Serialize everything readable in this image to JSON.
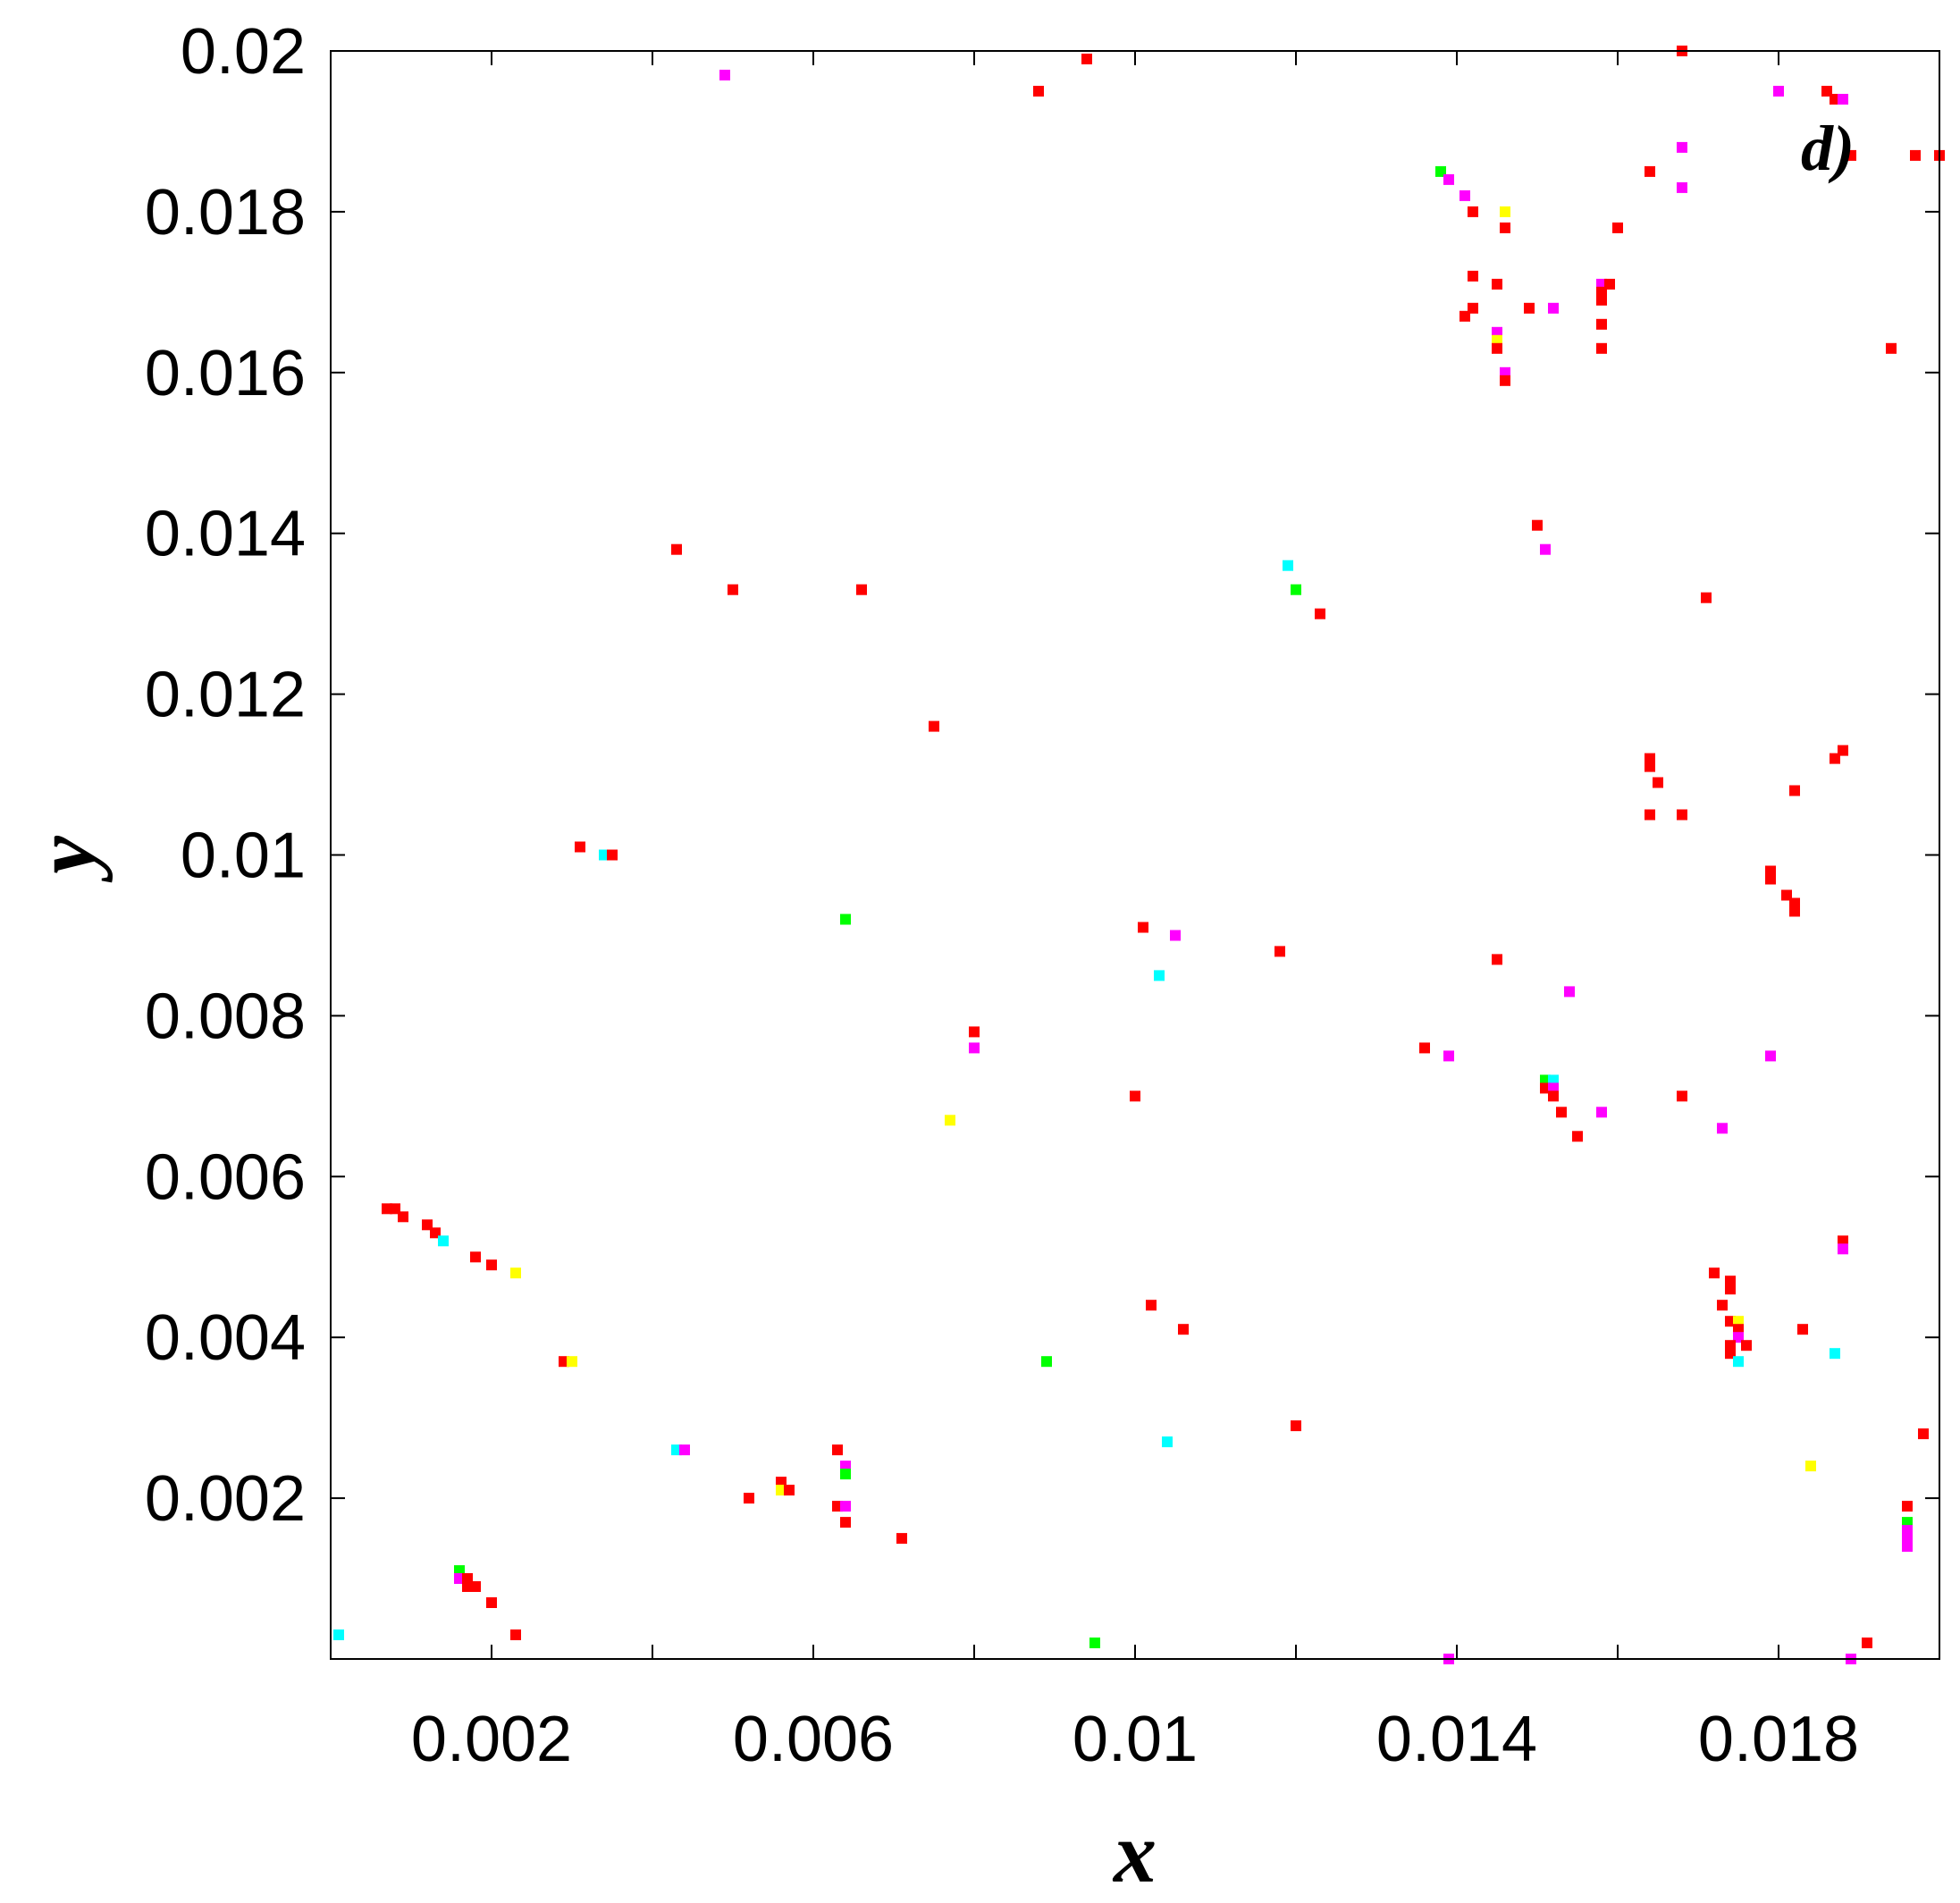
{
  "chart_data": {
    "type": "scatter",
    "panel_label": "d)",
    "xlabel": "x",
    "ylabel": "y",
    "xlim": [
      0,
      0.02
    ],
    "ylim": [
      0,
      0.02
    ],
    "grid": false,
    "x_tick_values": [
      0.002,
      0.006,
      0.01,
      0.014,
      0.018
    ],
    "x_tick_labels": [
      "0.002",
      "0.006",
      "0.01",
      "0.014",
      "0.018"
    ],
    "x_minor_ticks": [
      0.002,
      0.004,
      0.006,
      0.008,
      0.01,
      0.012,
      0.014,
      0.016,
      0.018
    ],
    "y_tick_values": [
      0.002,
      0.004,
      0.006,
      0.008,
      0.01,
      0.012,
      0.014,
      0.016,
      0.018,
      0.02
    ],
    "y_tick_labels": [
      "0.002",
      "0.004",
      "0.006",
      "0.008",
      "0.01",
      "0.012",
      "0.014",
      "0.016",
      "0.018",
      "0.02"
    ],
    "colors": {
      "red": "#ff0000",
      "magenta": "#ff00ff",
      "cyan": "#00ffff",
      "yellow": "#ffff00",
      "green": "#00ff00"
    },
    "points": [
      {
        "x": 0.0049,
        "y": 0.0197,
        "c": "magenta"
      },
      {
        "x": 0.0088,
        "y": 0.0195,
        "c": "red"
      },
      {
        "x": 0.0094,
        "y": 0.0199,
        "c": "red"
      },
      {
        "x": 0.0168,
        "y": 0.02,
        "c": "red"
      },
      {
        "x": 0.018,
        "y": 0.0195,
        "c": "magenta"
      },
      {
        "x": 0.0186,
        "y": 0.0195,
        "c": "red"
      },
      {
        "x": 0.0187,
        "y": 0.0194,
        "c": "red"
      },
      {
        "x": 0.0188,
        "y": 0.0194,
        "c": "magenta"
      },
      {
        "x": 0.0189,
        "y": 0.0187,
        "c": "red"
      },
      {
        "x": 0.0197,
        "y": 0.0187,
        "c": "red"
      },
      {
        "x": 0.02,
        "y": 0.0187,
        "c": "red"
      },
      {
        "x": 0.0168,
        "y": 0.0188,
        "c": "magenta"
      },
      {
        "x": 0.0168,
        "y": 0.0183,
        "c": "magenta"
      },
      {
        "x": 0.0164,
        "y": 0.0185,
        "c": "red"
      },
      {
        "x": 0.016,
        "y": 0.0178,
        "c": "red"
      },
      {
        "x": 0.0138,
        "y": 0.0185,
        "c": "green"
      },
      {
        "x": 0.0139,
        "y": 0.0184,
        "c": "magenta"
      },
      {
        "x": 0.0141,
        "y": 0.0182,
        "c": "magenta"
      },
      {
        "x": 0.0142,
        "y": 0.018,
        "c": "red"
      },
      {
        "x": 0.0146,
        "y": 0.018,
        "c": "yellow"
      },
      {
        "x": 0.0146,
        "y": 0.0178,
        "c": "red"
      },
      {
        "x": 0.0142,
        "y": 0.0172,
        "c": "red"
      },
      {
        "x": 0.0145,
        "y": 0.0171,
        "c": "red"
      },
      {
        "x": 0.0142,
        "y": 0.0168,
        "c": "red"
      },
      {
        "x": 0.0141,
        "y": 0.0167,
        "c": "red"
      },
      {
        "x": 0.0149,
        "y": 0.0168,
        "c": "red"
      },
      {
        "x": 0.0152,
        "y": 0.0168,
        "c": "magenta"
      },
      {
        "x": 0.0145,
        "y": 0.0165,
        "c": "magenta"
      },
      {
        "x": 0.0145,
        "y": 0.0164,
        "c": "yellow"
      },
      {
        "x": 0.0145,
        "y": 0.0163,
        "c": "red"
      },
      {
        "x": 0.0146,
        "y": 0.016,
        "c": "magenta"
      },
      {
        "x": 0.0146,
        "y": 0.0159,
        "c": "red"
      },
      {
        "x": 0.0158,
        "y": 0.0171,
        "c": "magenta"
      },
      {
        "x": 0.0159,
        "y": 0.0171,
        "c": "red"
      },
      {
        "x": 0.0158,
        "y": 0.017,
        "c": "red"
      },
      {
        "x": 0.0158,
        "y": 0.0169,
        "c": "red"
      },
      {
        "x": 0.0158,
        "y": 0.0166,
        "c": "red"
      },
      {
        "x": 0.0158,
        "y": 0.0163,
        "c": "red"
      },
      {
        "x": 0.0194,
        "y": 0.0163,
        "c": "red"
      },
      {
        "x": 0.015,
        "y": 0.0141,
        "c": "red"
      },
      {
        "x": 0.0151,
        "y": 0.0138,
        "c": "magenta"
      },
      {
        "x": 0.0171,
        "y": 0.0132,
        "c": "red"
      },
      {
        "x": 0.0119,
        "y": 0.0136,
        "c": "cyan"
      },
      {
        "x": 0.012,
        "y": 0.0133,
        "c": "green"
      },
      {
        "x": 0.0123,
        "y": 0.013,
        "c": "red"
      },
      {
        "x": 0.0043,
        "y": 0.0138,
        "c": "red"
      },
      {
        "x": 0.005,
        "y": 0.0133,
        "c": "red"
      },
      {
        "x": 0.0066,
        "y": 0.0133,
        "c": "red"
      },
      {
        "x": 0.0075,
        "y": 0.0116,
        "c": "red"
      },
      {
        "x": 0.0164,
        "y": 0.0112,
        "c": "red"
      },
      {
        "x": 0.0164,
        "y": 0.0111,
        "c": "red"
      },
      {
        "x": 0.0165,
        "y": 0.0109,
        "c": "red"
      },
      {
        "x": 0.0164,
        "y": 0.0105,
        "c": "red"
      },
      {
        "x": 0.0168,
        "y": 0.0105,
        "c": "red"
      },
      {
        "x": 0.0187,
        "y": 0.0112,
        "c": "red"
      },
      {
        "x": 0.0188,
        "y": 0.0113,
        "c": "red"
      },
      {
        "x": 0.0182,
        "y": 0.0108,
        "c": "red"
      },
      {
        "x": 0.0031,
        "y": 0.0101,
        "c": "red"
      },
      {
        "x": 0.0034,
        "y": 0.01,
        "c": "cyan"
      },
      {
        "x": 0.0035,
        "y": 0.01,
        "c": "red"
      },
      {
        "x": 0.0064,
        "y": 0.0092,
        "c": "green"
      },
      {
        "x": 0.0101,
        "y": 0.0091,
        "c": "red"
      },
      {
        "x": 0.0105,
        "y": 0.009,
        "c": "magenta"
      },
      {
        "x": 0.0118,
        "y": 0.0088,
        "c": "red"
      },
      {
        "x": 0.0145,
        "y": 0.0087,
        "c": "red"
      },
      {
        "x": 0.0103,
        "y": 0.0085,
        "c": "cyan"
      },
      {
        "x": 0.0179,
        "y": 0.0098,
        "c": "red"
      },
      {
        "x": 0.0179,
        "y": 0.0097,
        "c": "red"
      },
      {
        "x": 0.0181,
        "y": 0.0095,
        "c": "red"
      },
      {
        "x": 0.0182,
        "y": 0.0094,
        "c": "red"
      },
      {
        "x": 0.0182,
        "y": 0.0093,
        "c": "red"
      },
      {
        "x": 0.0154,
        "y": 0.0083,
        "c": "magenta"
      },
      {
        "x": 0.008,
        "y": 0.0078,
        "c": "red"
      },
      {
        "x": 0.008,
        "y": 0.0076,
        "c": "magenta"
      },
      {
        "x": 0.0136,
        "y": 0.0076,
        "c": "red"
      },
      {
        "x": 0.0139,
        "y": 0.0075,
        "c": "magenta"
      },
      {
        "x": 0.0179,
        "y": 0.0075,
        "c": "magenta"
      },
      {
        "x": 0.0151,
        "y": 0.0072,
        "c": "green"
      },
      {
        "x": 0.0152,
        "y": 0.0072,
        "c": "cyan"
      },
      {
        "x": 0.0151,
        "y": 0.0071,
        "c": "red"
      },
      {
        "x": 0.0152,
        "y": 0.0071,
        "c": "magenta"
      },
      {
        "x": 0.0152,
        "y": 0.007,
        "c": "red"
      },
      {
        "x": 0.01,
        "y": 0.007,
        "c": "red"
      },
      {
        "x": 0.0168,
        "y": 0.007,
        "c": "red"
      },
      {
        "x": 0.0153,
        "y": 0.0068,
        "c": "red"
      },
      {
        "x": 0.0158,
        "y": 0.0068,
        "c": "magenta"
      },
      {
        "x": 0.0077,
        "y": 0.0067,
        "c": "yellow"
      },
      {
        "x": 0.0173,
        "y": 0.0066,
        "c": "magenta"
      },
      {
        "x": 0.0155,
        "y": 0.0065,
        "c": "red"
      },
      {
        "x": 0.0007,
        "y": 0.0056,
        "c": "red"
      },
      {
        "x": 0.0008,
        "y": 0.0056,
        "c": "red"
      },
      {
        "x": 0.0009,
        "y": 0.0055,
        "c": "red"
      },
      {
        "x": 0.0012,
        "y": 0.0054,
        "c": "red"
      },
      {
        "x": 0.0013,
        "y": 0.0053,
        "c": "red"
      },
      {
        "x": 0.0014,
        "y": 0.0052,
        "c": "cyan"
      },
      {
        "x": 0.0018,
        "y": 0.005,
        "c": "red"
      },
      {
        "x": 0.002,
        "y": 0.0049,
        "c": "red"
      },
      {
        "x": 0.0023,
        "y": 0.0048,
        "c": "yellow"
      },
      {
        "x": 0.0188,
        "y": 0.0052,
        "c": "red"
      },
      {
        "x": 0.0188,
        "y": 0.0051,
        "c": "magenta"
      },
      {
        "x": 0.0172,
        "y": 0.0048,
        "c": "red"
      },
      {
        "x": 0.0174,
        "y": 0.0047,
        "c": "red"
      },
      {
        "x": 0.0174,
        "y": 0.0046,
        "c": "red"
      },
      {
        "x": 0.0173,
        "y": 0.0044,
        "c": "red"
      },
      {
        "x": 0.0174,
        "y": 0.0042,
        "c": "red"
      },
      {
        "x": 0.0175,
        "y": 0.0042,
        "c": "yellow"
      },
      {
        "x": 0.0175,
        "y": 0.0041,
        "c": "red"
      },
      {
        "x": 0.0175,
        "y": 0.004,
        "c": "magenta"
      },
      {
        "x": 0.0174,
        "y": 0.0039,
        "c": "red"
      },
      {
        "x": 0.0176,
        "y": 0.0039,
        "c": "red"
      },
      {
        "x": 0.0174,
        "y": 0.0038,
        "c": "red"
      },
      {
        "x": 0.0175,
        "y": 0.0037,
        "c": "cyan"
      },
      {
        "x": 0.0183,
        "y": 0.0041,
        "c": "red"
      },
      {
        "x": 0.0187,
        "y": 0.0038,
        "c": "cyan"
      },
      {
        "x": 0.0102,
        "y": 0.0044,
        "c": "red"
      },
      {
        "x": 0.0106,
        "y": 0.0041,
        "c": "red"
      },
      {
        "x": 0.0029,
        "y": 0.0037,
        "c": "red"
      },
      {
        "x": 0.003,
        "y": 0.0037,
        "c": "yellow"
      },
      {
        "x": 0.0089,
        "y": 0.0037,
        "c": "green"
      },
      {
        "x": 0.012,
        "y": 0.0029,
        "c": "red"
      },
      {
        "x": 0.0104,
        "y": 0.0027,
        "c": "cyan"
      },
      {
        "x": 0.0198,
        "y": 0.0028,
        "c": "red"
      },
      {
        "x": 0.0043,
        "y": 0.0026,
        "c": "cyan"
      },
      {
        "x": 0.0044,
        "y": 0.0026,
        "c": "magenta"
      },
      {
        "x": 0.0063,
        "y": 0.0026,
        "c": "red"
      },
      {
        "x": 0.0064,
        "y": 0.0024,
        "c": "magenta"
      },
      {
        "x": 0.0064,
        "y": 0.0023,
        "c": "green"
      },
      {
        "x": 0.0184,
        "y": 0.0024,
        "c": "yellow"
      },
      {
        "x": 0.0056,
        "y": 0.0022,
        "c": "red"
      },
      {
        "x": 0.0056,
        "y": 0.0021,
        "c": "yellow"
      },
      {
        "x": 0.0057,
        "y": 0.0021,
        "c": "red"
      },
      {
        "x": 0.0052,
        "y": 0.002,
        "c": "red"
      },
      {
        "x": 0.0063,
        "y": 0.0019,
        "c": "red"
      },
      {
        "x": 0.0064,
        "y": 0.0019,
        "c": "magenta"
      },
      {
        "x": 0.0064,
        "y": 0.0017,
        "c": "red"
      },
      {
        "x": 0.0071,
        "y": 0.0015,
        "c": "red"
      },
      {
        "x": 0.0196,
        "y": 0.0019,
        "c": "red"
      },
      {
        "x": 0.0196,
        "y": 0.0017,
        "c": "green"
      },
      {
        "x": 0.0196,
        "y": 0.0016,
        "c": "magenta"
      },
      {
        "x": 0.0196,
        "y": 0.0015,
        "c": "magenta"
      },
      {
        "x": 0.0196,
        "y": 0.0014,
        "c": "magenta"
      },
      {
        "x": 0.0016,
        "y": 0.0011,
        "c": "green"
      },
      {
        "x": 0.0016,
        "y": 0.001,
        "c": "magenta"
      },
      {
        "x": 0.0017,
        "y": 0.001,
        "c": "red"
      },
      {
        "x": 0.0017,
        "y": 0.0009,
        "c": "red"
      },
      {
        "x": 0.0018,
        "y": 0.0009,
        "c": "red"
      },
      {
        "x": 0.002,
        "y": 0.0007,
        "c": "red"
      },
      {
        "x": 0.0023,
        "y": 0.0003,
        "c": "red"
      },
      {
        "x": 0.0001,
        "y": 0.0003,
        "c": "cyan"
      },
      {
        "x": 0.0095,
        "y": 0.0002,
        "c": "green"
      },
      {
        "x": 0.0139,
        "y": 0.0,
        "c": "magenta"
      },
      {
        "x": 0.0189,
        "y": 0.0,
        "c": "magenta"
      },
      {
        "x": 0.0191,
        "y": 0.0002,
        "c": "red"
      }
    ]
  }
}
